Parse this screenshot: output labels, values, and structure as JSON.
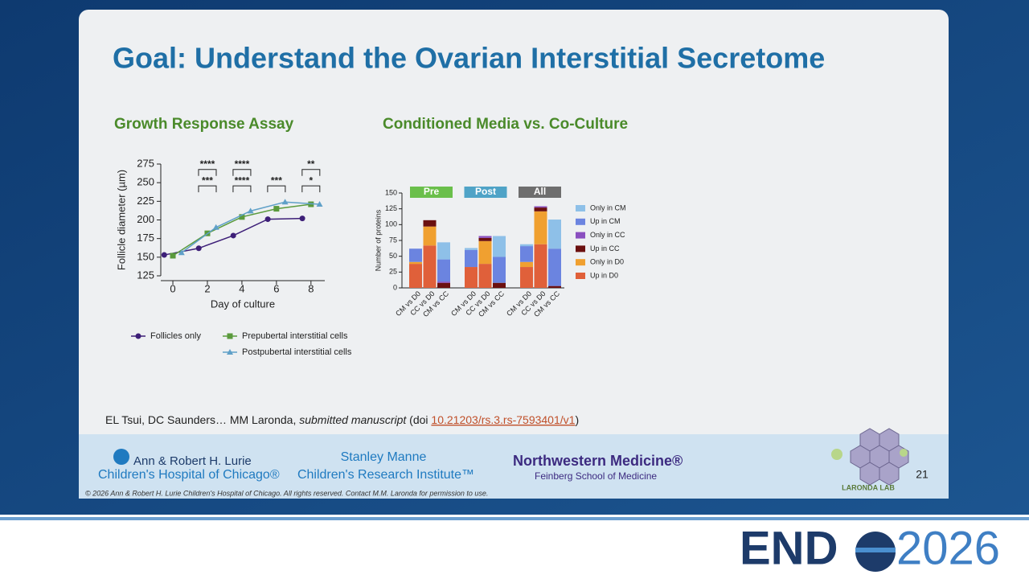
{
  "slide": {
    "title": "Goal: Understand the Ovarian Interstitial Secretome",
    "citation": {
      "authors": "EL Tsui, DC Saunders… MM Laronda, ",
      "status": "submitted manuscript",
      "doi_prefix": " (doi ",
      "doi": "10.21203/rs.3.rs-7593401/v1",
      "close": ")"
    },
    "footer": {
      "lurie_1": "Ann & Robert H. Lurie",
      "lurie_2": "Children's Hospital of Chicago®",
      "manne_1": "Stanley Manne",
      "manne_2": "Children's Research Institute™",
      "nw_1": "Northwestern Medicine®",
      "nw_2": "Feinberg School of Medicine",
      "copyright": "© 2026 Ann & Robert H. Lurie Children's Hospital of Chicago. All rights reserved. Contact M.M. Laronda for permission to use.",
      "lab": "LARONDA LAB",
      "page": "21"
    },
    "banner": {
      "left": "END",
      "right": "2026"
    }
  },
  "chart_data": [
    {
      "type": "line",
      "title": "Growth Response Assay",
      "x_label": "Day of culture",
      "y_label": "Follicle diameter (µm)",
      "xlim": [
        -0.7,
        8.8
      ],
      "xticks": [
        0,
        2,
        4,
        6,
        8
      ],
      "ylim": [
        125,
        275
      ],
      "yticks": [
        125,
        150,
        175,
        200,
        225,
        250,
        275
      ],
      "series": [
        {
          "name": "Follicles only",
          "color": "#3d1f78",
          "marker": "circle",
          "x": [
            -0.5,
            1.5,
            3.5,
            5.5,
            7.5
          ],
          "values": [
            153,
            162,
            179,
            201,
            202
          ]
        },
        {
          "name": "Prepubertal interstitial cells",
          "color": "#5a9a3c",
          "marker": "square",
          "x": [
            0,
            2,
            4,
            6,
            8
          ],
          "values": [
            152,
            182,
            204,
            215,
            221
          ]
        },
        {
          "name": "Postpubertal interstitial cells",
          "color": "#5fa0c8",
          "marker": "triangle",
          "x": [
            0.5,
            2.5,
            4.5,
            6.5,
            8.5
          ],
          "values": [
            156,
            190,
            212,
            224,
            221
          ]
        }
      ],
      "annotations": [
        {
          "text": "****",
          "x": 2,
          "y": 272
        },
        {
          "text": "****",
          "x": 4,
          "y": 272
        },
        {
          "text": "**",
          "x": 8,
          "y": 272
        },
        {
          "text": "***",
          "x": 2,
          "y": 250
        },
        {
          "text": "****",
          "x": 4,
          "y": 250
        },
        {
          "text": "***",
          "x": 6,
          "y": 250
        },
        {
          "text": "*",
          "x": 8,
          "y": 250
        }
      ]
    },
    {
      "type": "stacked-bar",
      "title": "Conditioned Media vs. Co-Culture",
      "y_label": "Number of proteins",
      "ylim": [
        0,
        150
      ],
      "yticks": [
        0,
        25,
        50,
        75,
        100,
        125,
        150
      ],
      "groups": [
        {
          "name": "Pre",
          "color": "#6abf4b"
        },
        {
          "name": "Post",
          "color": "#4fa3c7"
        },
        {
          "name": "All",
          "color": "#6e6e6e"
        }
      ],
      "categories": [
        "CM vs D0",
        "CC vs D0",
        "CM vs CC",
        "CM vs D0",
        "CC vs D0",
        "CM vs CC",
        "CM vs D0",
        "CC vs D0",
        "CM vs CC"
      ],
      "series": [
        {
          "name": "Up in D0",
          "color": "#e0603a",
          "values": [
            38,
            67,
            0,
            33,
            38,
            0,
            33,
            69,
            0
          ]
        },
        {
          "name": "Only in D0",
          "color": "#f0a030",
          "values": [
            3,
            30,
            0,
            0,
            36,
            0,
            8,
            52,
            0
          ]
        },
        {
          "name": "Up in CC",
          "color": "#6b1010",
          "values": [
            0,
            10,
            8,
            0,
            5,
            8,
            0,
            6,
            3
          ]
        },
        {
          "name": "Only in CC",
          "color": "#8a4fc0",
          "values": [
            0,
            0,
            2,
            0,
            3,
            0,
            0,
            2,
            0
          ]
        },
        {
          "name": "Up in CM",
          "color": "#6b84e0",
          "values": [
            21,
            0,
            35,
            27,
            0,
            41,
            25,
            0,
            59
          ]
        },
        {
          "name": "Only in CM",
          "color": "#8ec0e8",
          "values": [
            0,
            0,
            27,
            3,
            0,
            33,
            3,
            0,
            46
          ]
        }
      ]
    }
  ]
}
